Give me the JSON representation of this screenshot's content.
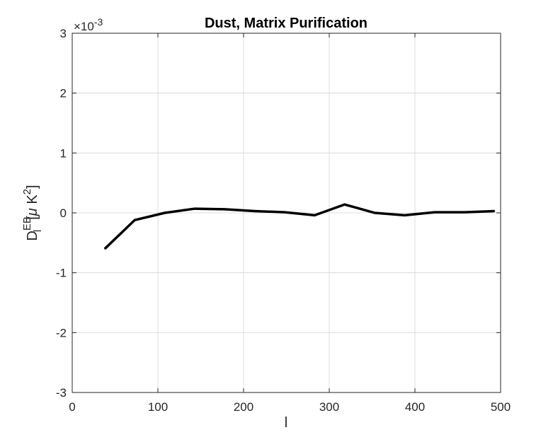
{
  "chart_data": {
    "type": "line",
    "title": "Dust, Matrix Purification",
    "xlabel": "l",
    "ylabel": {
      "base": "D",
      "subscript": "l",
      "superscript": "EB",
      "unit_open": "[",
      "unit_mu": "μ",
      "unit_K": " K",
      "unit_power": "2",
      "unit_close": "]"
    },
    "y_exponent_label": "×10",
    "y_exponent_power": "-3",
    "y_scale_factor": 0.001,
    "xlim": [
      0,
      500
    ],
    "ylim": [
      -3,
      3
    ],
    "xticks": [
      0,
      100,
      200,
      300,
      400,
      500
    ],
    "yticks": [
      -3,
      -2,
      -1,
      0,
      1,
      2,
      3
    ],
    "grid": true,
    "series": [
      {
        "color": "#000000",
        "x": [
          38,
          73,
          108,
          143,
          178,
          213,
          248,
          283,
          318,
          353,
          388,
          423,
          458,
          493
        ],
        "y": [
          -0.6,
          -0.12,
          0.0,
          0.07,
          0.06,
          0.03,
          0.01,
          -0.04,
          0.14,
          0.0,
          -0.04,
          0.01,
          0.01,
          0.03
        ]
      }
    ]
  }
}
